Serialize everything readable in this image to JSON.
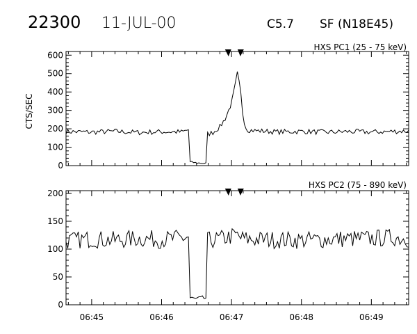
{
  "header": {
    "id": "22300",
    "date": "11-JUL-00",
    "class": "C5.7",
    "location": "SF (N18E45)"
  },
  "chart_data": [
    {
      "type": "line",
      "panel_label": "HXS PC1 (25 - 75 keV)",
      "ylabel": "CTS/SEC",
      "ylim": [
        0,
        620
      ],
      "yticks": [
        0,
        100,
        200,
        300,
        400,
        500,
        600
      ],
      "xlim": [
        "06:44:38",
        "06:49:32"
      ],
      "xtick_labels": [
        "06:45",
        "06:46",
        "06:47",
        "06:48",
        "06:49"
      ],
      "markers": [
        "06:46:58",
        "06:47:07"
      ],
      "series": [
        {
          "points": [
            [
              "06:44:38",
              185
            ],
            [
              "06:45:00",
              182
            ],
            [
              "06:45:20",
              186
            ],
            [
              "06:45:40",
              180
            ],
            [
              "06:46:00",
              184
            ],
            [
              "06:46:18",
              183
            ],
            [
              "06:46:23",
              195
            ],
            [
              "06:46:24",
              20
            ],
            [
              "06:46:30",
              15
            ],
            [
              "06:46:38",
              12
            ],
            [
              "06:46:39",
              170
            ],
            [
              "06:46:44",
              180
            ],
            [
              "06:46:50",
              210
            ],
            [
              "06:46:55",
              260
            ],
            [
              "06:47:00",
              340
            ],
            [
              "06:47:03",
              430
            ],
            [
              "06:47:05",
              500
            ],
            [
              "06:47:06",
              470
            ],
            [
              "06:47:08",
              390
            ],
            [
              "06:47:10",
              260
            ],
            [
              "06:47:13",
              195
            ],
            [
              "06:47:20",
              190
            ],
            [
              "06:47:40",
              183
            ],
            [
              "06:48:00",
              186
            ],
            [
              "06:48:20",
              181
            ],
            [
              "06:48:40",
              185
            ],
            [
              "06:49:00",
              182
            ],
            [
              "06:49:20",
              186
            ],
            [
              "06:49:32",
              188
            ]
          ]
        }
      ]
    },
    {
      "type": "line",
      "panel_label": "HXS PC2 (75 - 890 keV)",
      "ylabel": "",
      "ylim": [
        0,
        205
      ],
      "yticks": [
        0,
        50,
        100,
        150,
        200
      ],
      "xlim": [
        "06:44:38",
        "06:49:32"
      ],
      "xtick_labels": [
        "06:45",
        "06:46",
        "06:47",
        "06:48",
        "06:49"
      ],
      "markers": [
        "06:46:58",
        "06:47:07"
      ],
      "series": [
        {
          "points": [
            [
              "06:44:38",
              115
            ],
            [
              "06:45:00",
              118
            ],
            [
              "06:45:20",
              116
            ],
            [
              "06:45:40",
              119
            ],
            [
              "06:46:00",
              117
            ],
            [
              "06:46:18",
              120
            ],
            [
              "06:46:23",
              122
            ],
            [
              "06:46:24",
              12
            ],
            [
              "06:46:30",
              10
            ],
            [
              "06:46:38",
              12
            ],
            [
              "06:46:39",
              115
            ],
            [
              "06:46:50",
              118
            ],
            [
              "06:47:04",
              125
            ],
            [
              "06:47:10",
              118
            ],
            [
              "06:47:30",
              117
            ],
            [
              "06:48:00",
              116
            ],
            [
              "06:48:30",
              118
            ],
            [
              "06:49:00",
              119
            ],
            [
              "06:49:20",
              121
            ],
            [
              "06:49:32",
              118
            ]
          ]
        }
      ]
    }
  ]
}
